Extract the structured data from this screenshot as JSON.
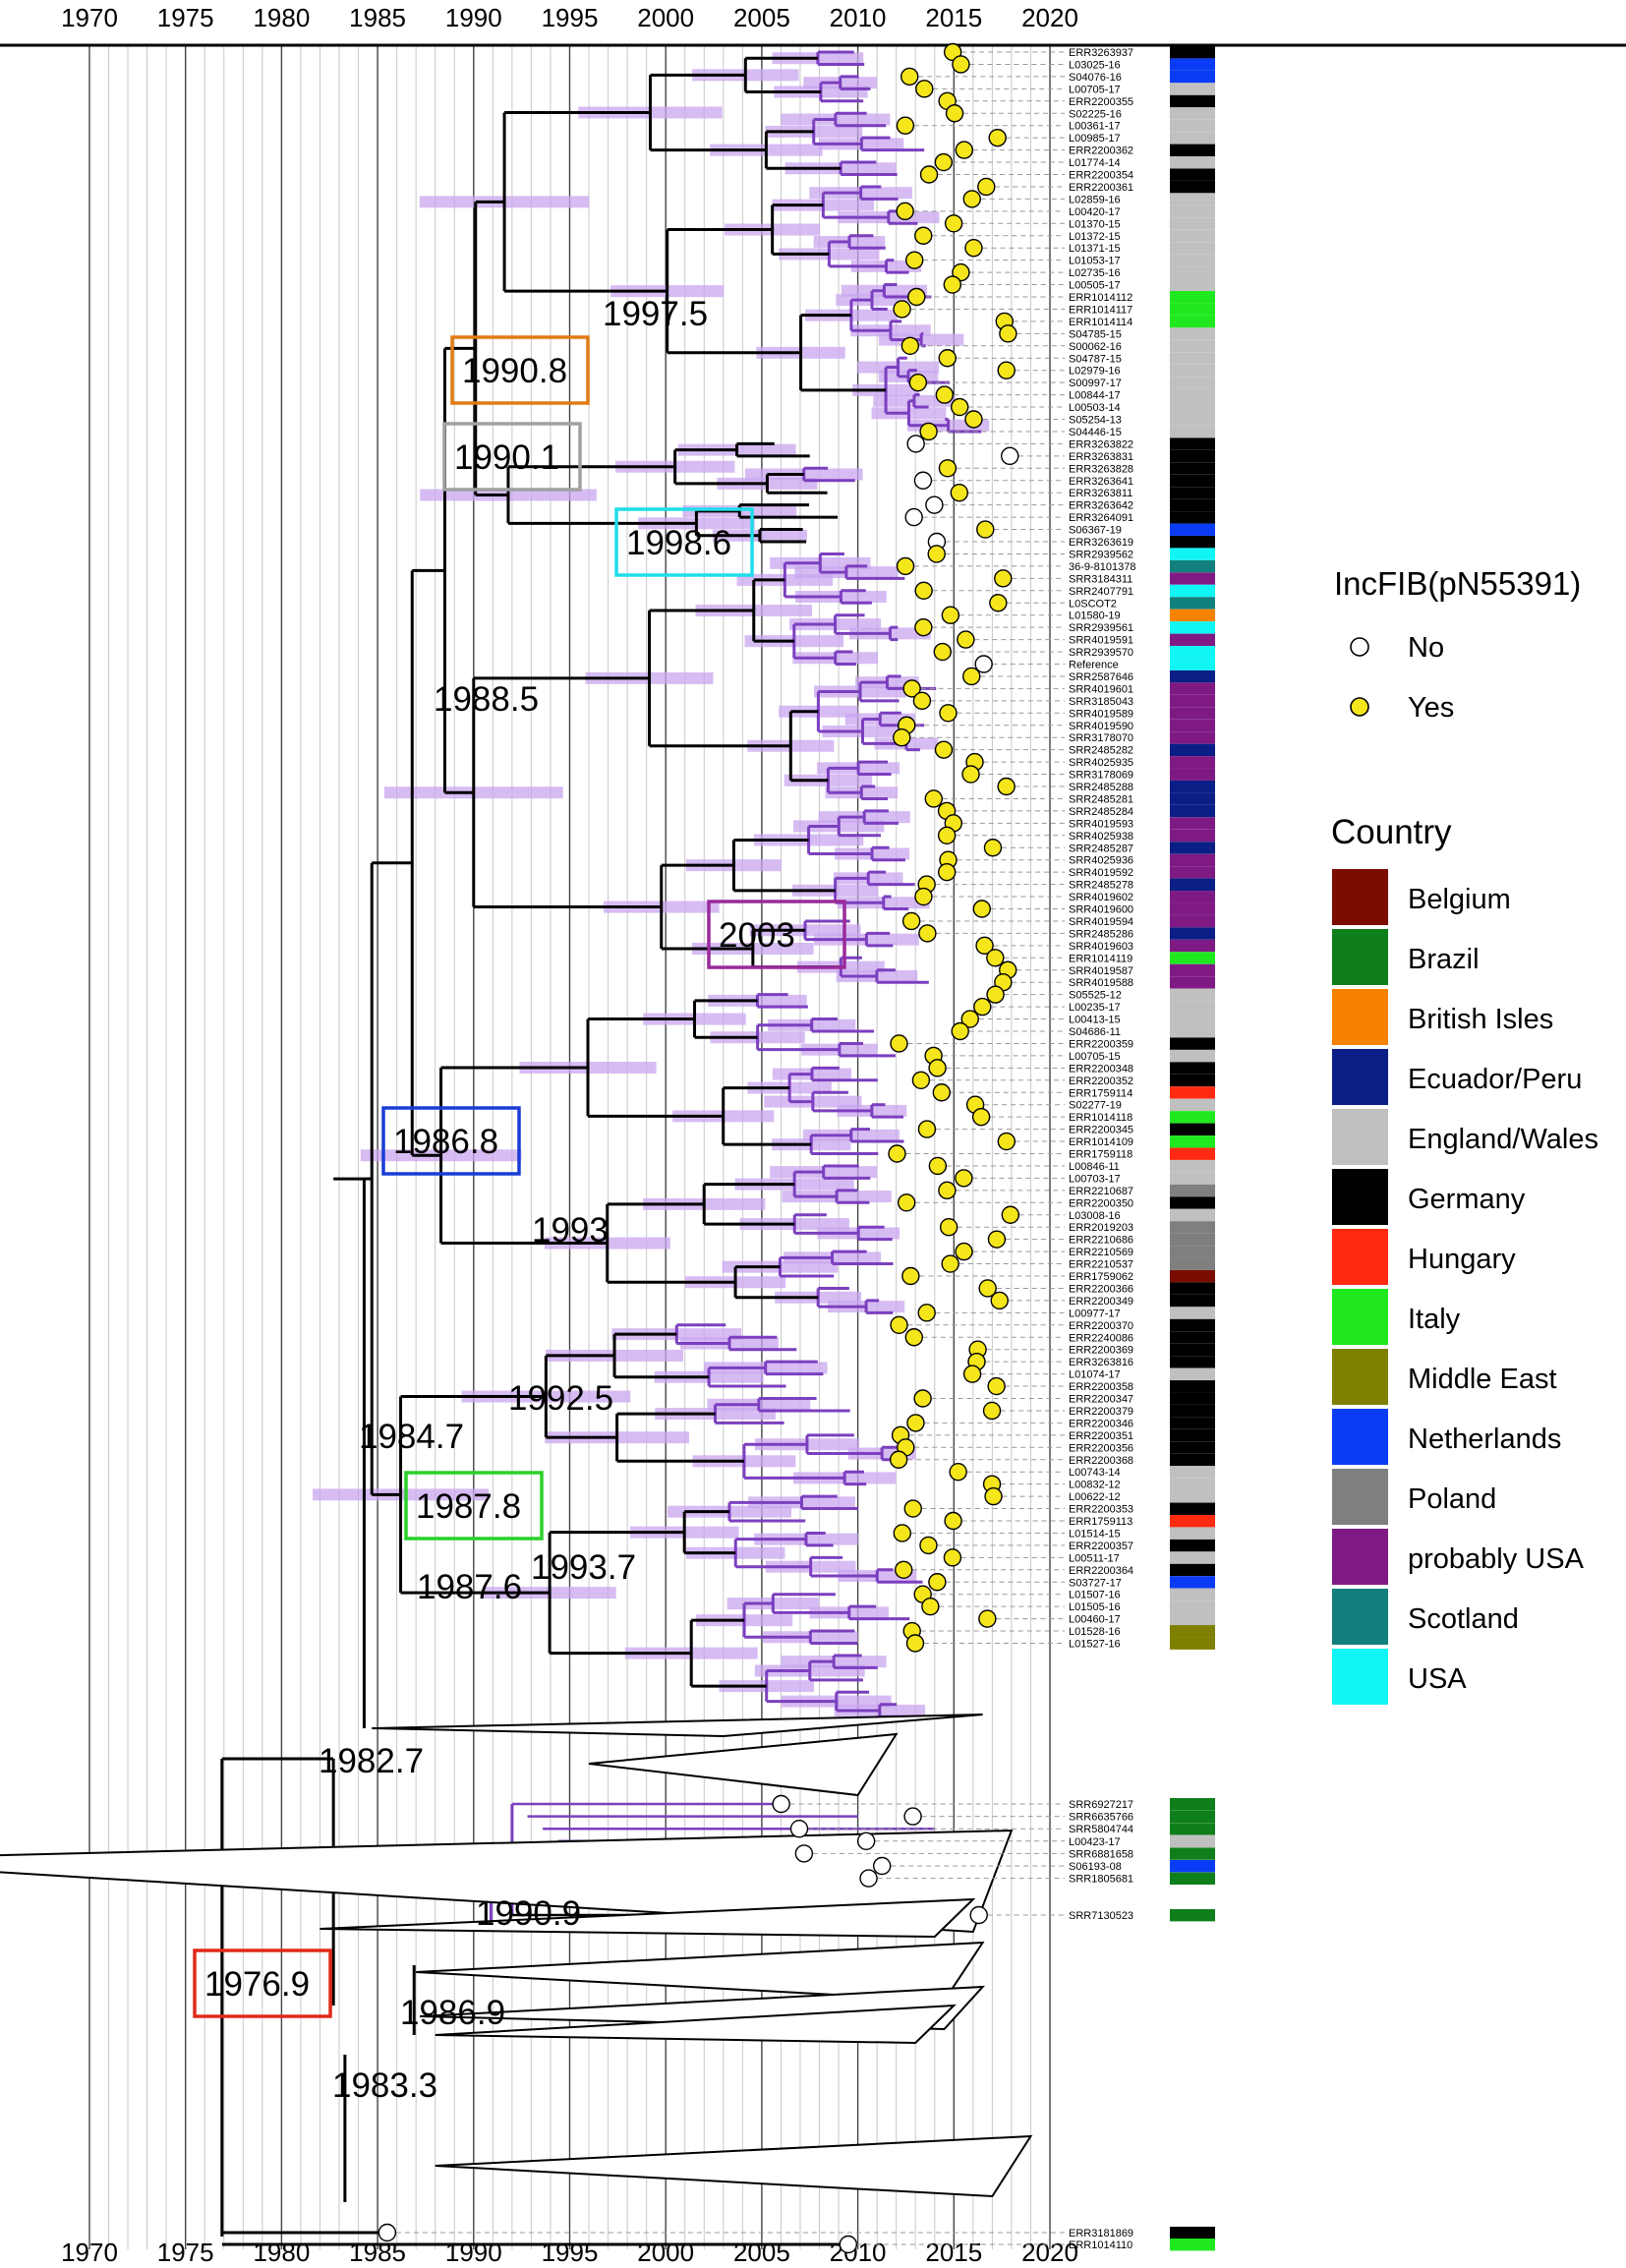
{
  "axis": {
    "min_year": 1970,
    "max_year": 2020,
    "tick_labels": [
      "1970",
      "1975",
      "1980",
      "1985",
      "1990",
      "1995",
      "2000",
      "2005",
      "2010",
      "2015",
      "2020"
    ]
  },
  "node_labels": [
    "1997.5",
    "1990.8",
    "1990.1",
    "1998.6",
    "1988.5",
    "2003",
    "1986.8",
    "1993",
    "1992.5",
    "1984.7",
    "1987.8",
    "1993.7",
    "1987.6",
    "1982.7",
    "1990.9",
    "1976.9",
    "1986.9",
    "1983.3"
  ],
  "tips_top": [
    "ERR3263937",
    "L03025-16",
    "S04076-16",
    "L00705-17",
    "ERR2200355",
    "S02225-16",
    "L00361-17",
    "L00985-17",
    "ERR2200362",
    "L01774-14",
    "ERR2200354",
    "ERR2200361",
    "L02859-16",
    "L00420-17",
    "L01370-15",
    "L01372-15",
    "L01371-15",
    "L01053-17",
    "L02735-16",
    "L00505-17",
    "ERR1014112",
    "ERR1014117",
    "ERR1014114",
    "S04785-15",
    "S00062-16",
    "S04787-15",
    "L02979-16",
    "S00997-17",
    "L00844-17",
    "L00503-14",
    "S05254-13",
    "S04446-15",
    "ERR3263822",
    "ERR3263831",
    "ERR3263828",
    "ERR3263641",
    "ERR3263811",
    "ERR3263642",
    "ERR3264091",
    "S06367-19",
    "ERR3263619",
    "SRR2939562",
    "36-9-8101378",
    "SRR3184311",
    "SRR2407791",
    "L0SCOT2",
    "L01580-19",
    "SRR2939561",
    "SRR4019591",
    "SRR2939570",
    "Reference",
    "SRR2587646",
    "SRR4019601",
    "SRR3185043",
    "SRR4019589",
    "SRR4019590",
    "SRR3178070",
    "SRR2485282",
    "SRR4025935",
    "SRR3178069",
    "SRR2485288",
    "SRR2485281",
    "SRR2485284",
    "SRR4019593",
    "SRR4025938",
    "SRR2485287",
    "SRR4025936",
    "SRR4019592",
    "SRR2485278",
    "SRR4019602",
    "SRR4019600",
    "SRR4019594",
    "SRR2485286",
    "SRR4019603",
    "ERR1014119",
    "SRR4019587",
    "SRR4019588",
    "S05525-12",
    "L00235-17",
    "L00413-15",
    "S04686-11",
    "ERR2200359",
    "L00705-15",
    "ERR2200348",
    "ERR2200352",
    "ERR1759114",
    "S02277-19",
    "ERR1014118",
    "ERR2200345",
    "ERR1014109",
    "ERR1759118",
    "L00846-11",
    "L00703-17",
    "ERR2210687",
    "ERR2200350",
    "L03008-16",
    "ERR2019203",
    "ERR2210686",
    "ERR2210569",
    "ERR2210537",
    "ERR1759062",
    "ERR2200366",
    "ERR2200349",
    "L00977-17",
    "ERR2200370",
    "ERR2240086",
    "ERR2200369",
    "ERR3263816",
    "L01074-17",
    "ERR2200358",
    "ERR2200347",
    "ERR2200379",
    "ERR2200346",
    "ERR2200351",
    "ERR2200356",
    "ERR2200368",
    "L00743-14",
    "L00832-12",
    "L00622-12",
    "ERR2200353",
    "ERR1759113",
    "L01514-15",
    "ERR2200357",
    "L00511-17",
    "ERR2200364",
    "S03727-17",
    "L01507-16",
    "L01505-16",
    "L00460-17",
    "L01528-16",
    "L01527-16"
  ],
  "tips_bottom": [
    "SRR6927217",
    "SRR6635766",
    "SRR5804744",
    "L00423-17",
    "SRR6881658",
    "S06193-08",
    "SRR1805681"
  ],
  "tip_single": "SRR7130523",
  "tips_end": [
    "ERR3181869",
    "ERR1014110"
  ],
  "legend_incfib": {
    "title": "IncFIB(pN55391)",
    "items": [
      {
        "label": "No",
        "color": "#ffffff"
      },
      {
        "label": "Yes",
        "color": "#f5e51b"
      }
    ]
  },
  "legend_country": {
    "title": "Country",
    "items": [
      {
        "label": "Belgium",
        "color": "#7b0c00"
      },
      {
        "label": "Brazil",
        "color": "#0e7f1a"
      },
      {
        "label": "British Isles",
        "color": "#f78200"
      },
      {
        "label": "Ecuador/Peru",
        "color": "#0a1f86"
      },
      {
        "label": "England/Wales",
        "color": "#c0c0c0"
      },
      {
        "label": "Germany",
        "color": "#000000"
      },
      {
        "label": "Hungary",
        "color": "#ff2a10"
      },
      {
        "label": "Italy",
        "color": "#1fe81f"
      },
      {
        "label": "Middle East",
        "color": "#7f7f00"
      },
      {
        "label": "Netherlands",
        "color": "#0a3cf5"
      },
      {
        "label": "Poland",
        "color": "#7f7f7f"
      },
      {
        "label": "probably USA",
        "color": "#7f1a84"
      },
      {
        "label": "Scotland",
        "color": "#12807e"
      },
      {
        "label": "USA",
        "color": "#12f5f5"
      }
    ]
  },
  "colors": {
    "branch": "#000000",
    "branch_purple": "#7b3fbf",
    "hpd": "#c9a6ef",
    "box_orange": "#e07b12",
    "box_grey": "#a0a0a0",
    "box_cyan": "#1fdde8",
    "box_purple": "#9a2a9a",
    "box_blue": "#1a3cd6",
    "box_green": "#2ad02a",
    "box_red": "#e02a1a"
  }
}
